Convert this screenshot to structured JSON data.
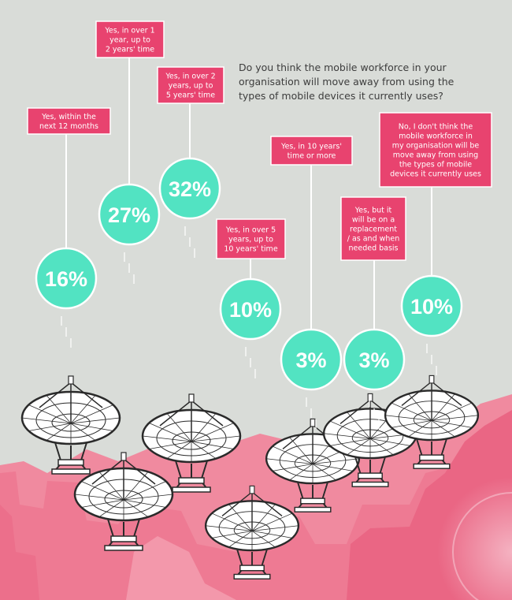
{
  "question": {
    "lines": [
      "Do you think the mobile workforce in your",
      "organisation will move away from using the",
      "types of mobile devices it currently uses?"
    ]
  },
  "chart_data": {
    "type": "bubble-infographic",
    "title": "Do you think the mobile workforce in your organisation will move away from using the types of mobile devices it currently uses?",
    "unit": "%",
    "categories": [
      "Yes, within the next 12 months",
      "Yes, in over 1 year, up to 2 years' time",
      "Yes, in over 2 years, up to 5 years' time",
      "Yes, in over 5 years, up to 10 years' time",
      "Yes, in 10 years' time or more",
      "Yes, but it will be on a replacement / as and when needed basis",
      "No, I don't think the mobile workforce in my organisation will be move away from using the types of mobile devices it currently uses"
    ],
    "values": [
      16,
      27,
      32,
      10,
      3,
      3,
      10
    ],
    "items": [
      {
        "label_lines": [
          "Yes, within the",
          "next 12 months"
        ],
        "value": 16,
        "display": "16%"
      },
      {
        "label_lines": [
          "Yes, in over 1",
          "year, up to",
          "2 years' time"
        ],
        "value": 27,
        "display": "27%"
      },
      {
        "label_lines": [
          "Yes, in over 2",
          "years, up to",
          "5 years' time"
        ],
        "value": 32,
        "display": "32%"
      },
      {
        "label_lines": [
          "Yes, in over 5",
          "years, up to",
          "10 years' time"
        ],
        "value": 10,
        "display": "10%"
      },
      {
        "label_lines": [
          "Yes, in 10 years'",
          "time or more"
        ],
        "value": 3,
        "display": "3%"
      },
      {
        "label_lines": [
          "Yes, but it",
          "will be on a",
          "replacement",
          "/ as and when",
          "needed basis"
        ],
        "value": 3,
        "display": "3%"
      },
      {
        "label_lines": [
          "No, I don't think the",
          "mobile workforce in",
          "my organisation will be",
          "move away from using",
          "the types of mobile",
          "devices it currently uses"
        ],
        "value": 10,
        "display": "10%"
      }
    ]
  },
  "colors": {
    "background": "#d9dcd8",
    "bubble": "#52e3c2",
    "label_box": "#e8436f",
    "label_border": "#ffffff",
    "terrain_dark": "#ec6f8b",
    "terrain_mid": "#f08a9f",
    "terrain_light": "#f7b3c0"
  }
}
